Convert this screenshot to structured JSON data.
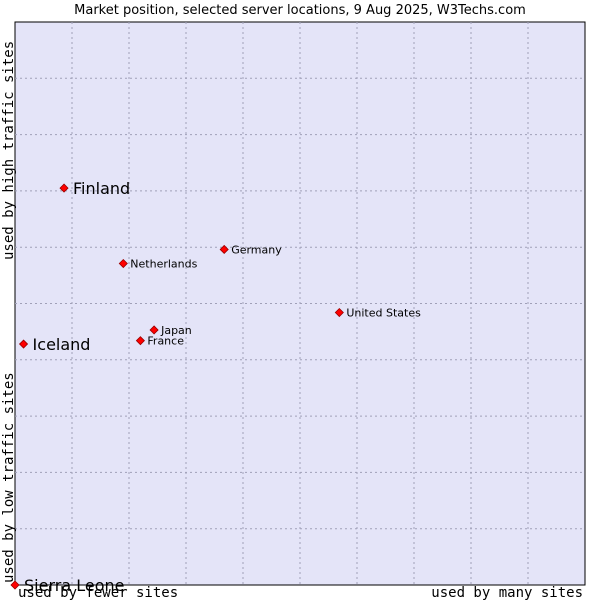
{
  "chart_data": {
    "type": "scatter",
    "title": "Market position, selected server locations, 9 Aug 2025, W3Techs.com",
    "xlabel_left": "used by fewer sites",
    "xlabel_right": "used by many sites",
    "ylabel_bottom": "used by low traffic sites",
    "ylabel_top": "used by high traffic sites",
    "xlim": [
      0,
      100
    ],
    "ylim": [
      0,
      100
    ],
    "grid": true,
    "points": [
      {
        "name": "Finland",
        "x": 8.6,
        "y": 70.5,
        "highlight": true
      },
      {
        "name": "Germany",
        "x": 36.7,
        "y": 59.6,
        "highlight": false
      },
      {
        "name": "Netherlands",
        "x": 19.0,
        "y": 57.1,
        "highlight": false
      },
      {
        "name": "United States",
        "x": 56.9,
        "y": 48.4,
        "highlight": false
      },
      {
        "name": "Japan",
        "x": 24.4,
        "y": 45.3,
        "highlight": false
      },
      {
        "name": "France",
        "x": 22.0,
        "y": 43.4,
        "highlight": false
      },
      {
        "name": "Iceland",
        "x": 1.5,
        "y": 42.8,
        "highlight": true
      },
      {
        "name": "Sierra Leone",
        "x": 0.0,
        "y": 0.0,
        "highlight": true
      }
    ],
    "colors": {
      "plot_bg": "#e4e4f8",
      "marker": "#ff0000"
    }
  }
}
